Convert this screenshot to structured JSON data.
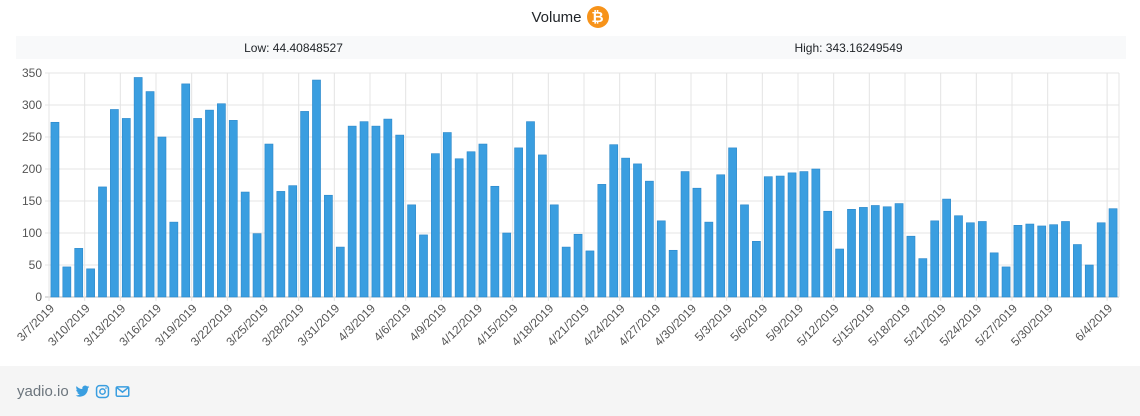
{
  "header": {
    "title": "Volume",
    "icon": "bitcoin-icon",
    "icon_glyph": "₿",
    "icon_color": "#f7931a"
  },
  "stats": {
    "low": "Low: 44.40848527",
    "high": "High: 343.16249549"
  },
  "chart_data": {
    "type": "bar",
    "title": "",
    "xlabel": "",
    "ylabel": "",
    "ylim": [
      0,
      350
    ],
    "yticks": [
      0,
      50,
      100,
      150,
      200,
      250,
      300,
      350
    ],
    "grid": true,
    "bar_color": "#3a9ee0",
    "categories": [
      "3/7/2019",
      "3/8/2019",
      "3/9/2019",
      "3/10/2019",
      "3/11/2019",
      "3/12/2019",
      "3/13/2019",
      "3/14/2019",
      "3/15/2019",
      "3/16/2019",
      "3/17/2019",
      "3/18/2019",
      "3/19/2019",
      "3/20/2019",
      "3/21/2019",
      "3/22/2019",
      "3/23/2019",
      "3/24/2019",
      "3/25/2019",
      "3/26/2019",
      "3/27/2019",
      "3/28/2019",
      "3/29/2019",
      "3/30/2019",
      "3/31/2019",
      "4/1/2019",
      "4/2/2019",
      "4/3/2019",
      "4/4/2019",
      "4/5/2019",
      "4/6/2019",
      "4/7/2019",
      "4/8/2019",
      "4/9/2019",
      "4/10/2019",
      "4/11/2019",
      "4/12/2019",
      "4/13/2019",
      "4/14/2019",
      "4/15/2019",
      "4/16/2019",
      "4/17/2019",
      "4/18/2019",
      "4/19/2019",
      "4/20/2019",
      "4/21/2019",
      "4/22/2019",
      "4/23/2019",
      "4/24/2019",
      "4/25/2019",
      "4/26/2019",
      "4/27/2019",
      "4/28/2019",
      "4/29/2019",
      "4/30/2019",
      "5/1/2019",
      "5/2/2019",
      "5/3/2019",
      "5/4/2019",
      "5/5/2019",
      "5/6/2019",
      "5/7/2019",
      "5/8/2019",
      "5/9/2019",
      "5/10/2019",
      "5/11/2019",
      "5/12/2019",
      "5/13/2019",
      "5/14/2019",
      "5/15/2019",
      "5/16/2019",
      "5/17/2019",
      "5/18/2019",
      "5/19/2019",
      "5/20/2019",
      "5/21/2019",
      "5/22/2019",
      "5/23/2019",
      "5/24/2019",
      "5/25/2019",
      "5/26/2019",
      "5/27/2019",
      "5/28/2019",
      "5/29/2019",
      "5/30/2019",
      "5/31/2019",
      "6/1/2019",
      "6/2/2019",
      "6/3/2019",
      "6/4/2019"
    ],
    "values": [
      273,
      47,
      76,
      44,
      172,
      293,
      279,
      343,
      321,
      250,
      117,
      333,
      279,
      292,
      302,
      276,
      164,
      99,
      239,
      165,
      174,
      290,
      339,
      159,
      78,
      267,
      274,
      267,
      278,
      253,
      144,
      97,
      224,
      257,
      216,
      227,
      239,
      173,
      100,
      233,
      274,
      222,
      144,
      78,
      98,
      72,
      176,
      238,
      217,
      208,
      181,
      119,
      73,
      196,
      170,
      117,
      191,
      233,
      144,
      87,
      188,
      189,
      194,
      196,
      200,
      134,
      75,
      137,
      140,
      143,
      141,
      146,
      95,
      60,
      119,
      153,
      127,
      116,
      118,
      69,
      47,
      112,
      114,
      111,
      113,
      118,
      82,
      50,
      116,
      138
    ],
    "tick_labels": [
      {
        "i": 0,
        "label": "3/7/2019"
      },
      {
        "i": 3,
        "label": "3/10/2019"
      },
      {
        "i": 6,
        "label": "3/13/2019"
      },
      {
        "i": 9,
        "label": "3/16/2019"
      },
      {
        "i": 12,
        "label": "3/19/2019"
      },
      {
        "i": 15,
        "label": "3/22/2019"
      },
      {
        "i": 18,
        "label": "3/25/2019"
      },
      {
        "i": 21,
        "label": "3/28/2019"
      },
      {
        "i": 24,
        "label": "3/31/2019"
      },
      {
        "i": 27,
        "label": "4/3/2019"
      },
      {
        "i": 30,
        "label": "4/6/2019"
      },
      {
        "i": 33,
        "label": "4/9/2019"
      },
      {
        "i": 36,
        "label": "4/12/2019"
      },
      {
        "i": 39,
        "label": "4/15/2019"
      },
      {
        "i": 42,
        "label": "4/18/2019"
      },
      {
        "i": 45,
        "label": "4/21/2019"
      },
      {
        "i": 48,
        "label": "4/24/2019"
      },
      {
        "i": 51,
        "label": "4/27/2019"
      },
      {
        "i": 54,
        "label": "4/30/2019"
      },
      {
        "i": 57,
        "label": "5/3/2019"
      },
      {
        "i": 60,
        "label": "5/6/2019"
      },
      {
        "i": 63,
        "label": "5/9/2019"
      },
      {
        "i": 66,
        "label": "5/12/2019"
      },
      {
        "i": 69,
        "label": "5/15/2019"
      },
      {
        "i": 72,
        "label": "5/18/2019"
      },
      {
        "i": 75,
        "label": "5/21/2019"
      },
      {
        "i": 78,
        "label": "5/24/2019"
      },
      {
        "i": 81,
        "label": "5/27/2019"
      },
      {
        "i": 84,
        "label": "5/30/2019"
      },
      {
        "i": 89,
        "label": "6/4/2019"
      }
    ]
  },
  "footer": {
    "brand": "yadio.io",
    "icons": [
      "twitter-icon",
      "instagram-icon",
      "mail-icon"
    ],
    "icon_color": "#3a9ee0"
  }
}
